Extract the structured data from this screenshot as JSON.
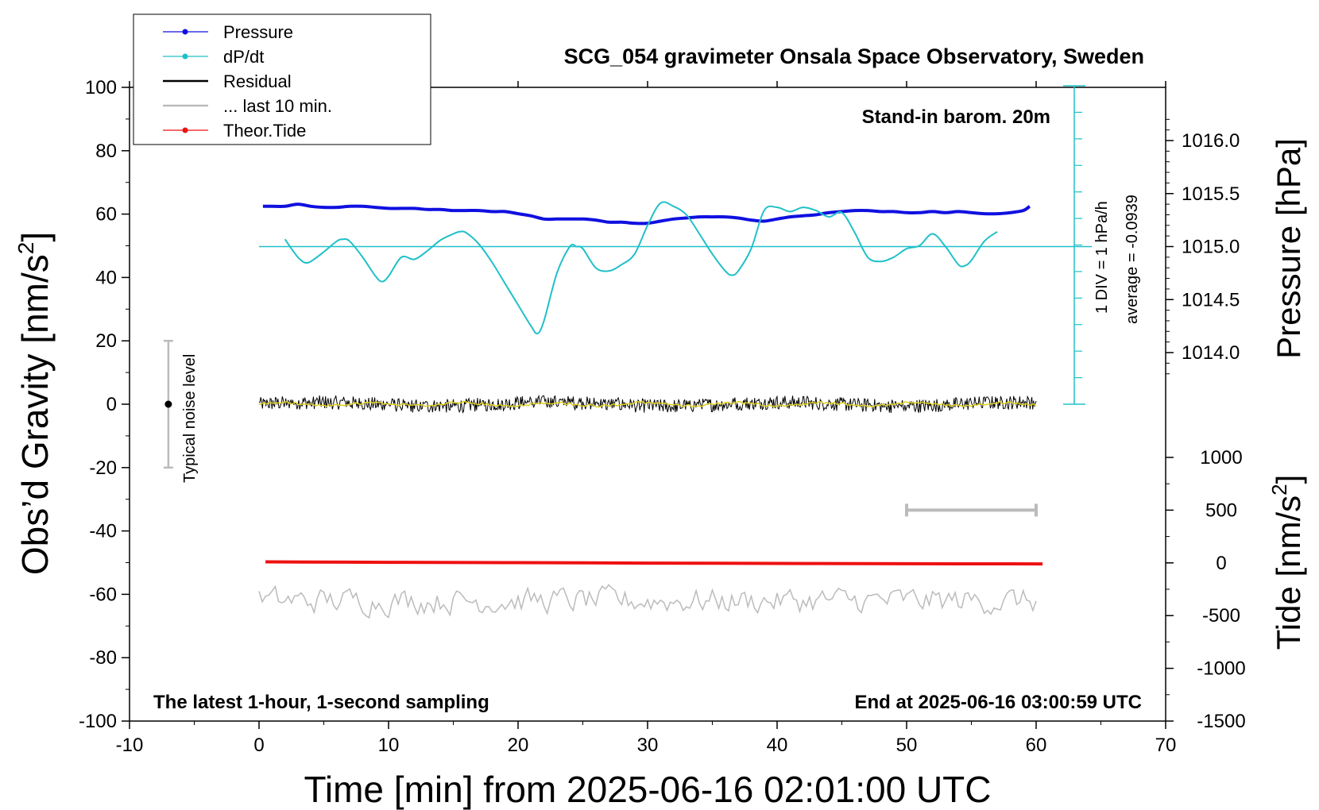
{
  "chart_data": {
    "type": "line",
    "title": "SCG_054 gravimeter Onsala Space Observatory, Sweden",
    "subtitle": "Stand-in barom. 20m",
    "xlabel": "Time [min] from 2025-06-16 02:01:00 UTC",
    "ylabel_left": "Obs’d Gravity [nm/s",
    "ylabel_right_top": "Pressure [hPa]",
    "ylabel_right_bottom": "Tide [nm/s",
    "superscript": "2",
    "xlim": [
      -10,
      70
    ],
    "ylim": [
      -100,
      100
    ],
    "x_ticks": [
      "-10",
      "0",
      "10",
      "20",
      "30",
      "40",
      "50",
      "60",
      "70"
    ],
    "y_ticks": [
      "100",
      "80",
      "60",
      "40",
      "20",
      "0",
      "-20",
      "-40",
      "-60",
      "-80",
      "-100"
    ],
    "pressure_ticks": [
      "1016.0",
      "1015.5",
      "1015.0",
      "1014.5",
      "1014.0"
    ],
    "tide_ticks": [
      "1000",
      "500",
      "0",
      "-500",
      "-1000",
      "-1500"
    ],
    "pressure_axis": {
      "value_at_top": 1016.0,
      "value_at_bottom": 1014.0
    },
    "tide_axis": {
      "min": -1500,
      "max": 1000
    },
    "annotations": {
      "div_label": "1 DIV = 1 hPa/h",
      "average_label": "average = -0.0939",
      "noise_label": "Typical noise level",
      "bottom_left": "The latest 1-hour, 1-second sampling",
      "bottom_right": "End at 2025-06-16 03:00:59 UTC"
    },
    "noise_bar": {
      "x": -7,
      "center": 0,
      "low": -20,
      "high": 20
    },
    "last10_bar": {
      "x_start": 50,
      "x_end": 60,
      "tide": 500
    },
    "dpdt_reference_level": 1015.0,
    "legend_position": "top-left",
    "legend": [
      {
        "label": "Pressure",
        "color": "#1010e0",
        "marker": true
      },
      {
        "label": "dP/dt",
        "color": "#20c0c8",
        "marker": true
      },
      {
        "label": "Residual",
        "color": "#000000",
        "marker": false
      },
      {
        "label": "... last 10 min.",
        "color": "#bbbbbb",
        "marker": false
      },
      {
        "label": "Theor.Tide",
        "color": "#ee1111",
        "marker": true
      }
    ],
    "series": [
      {
        "name": "Pressure",
        "axis": "pressure_hPa",
        "color": "#1010e0",
        "x": [
          0.3,
          1,
          2,
          3,
          4,
          5,
          6,
          7,
          8,
          9,
          10,
          11,
          12,
          13,
          14,
          15,
          16,
          17,
          18,
          19,
          20,
          21,
          22,
          23,
          24,
          25,
          26,
          27,
          28,
          29,
          30,
          31,
          32,
          33,
          34,
          35,
          36,
          37,
          38,
          39,
          40,
          41,
          42,
          43,
          44,
          45,
          46,
          47,
          48,
          49,
          50,
          51,
          52,
          53,
          54,
          55,
          56,
          57,
          58,
          59,
          59.5
        ],
        "y": [
          1015.38,
          1015.38,
          1015.38,
          1015.4,
          1015.38,
          1015.37,
          1015.37,
          1015.38,
          1015.38,
          1015.37,
          1015.36,
          1015.36,
          1015.36,
          1015.35,
          1015.35,
          1015.34,
          1015.34,
          1015.34,
          1015.33,
          1015.33,
          1015.31,
          1015.29,
          1015.26,
          1015.26,
          1015.26,
          1015.26,
          1015.25,
          1015.23,
          1015.23,
          1015.22,
          1015.22,
          1015.24,
          1015.26,
          1015.27,
          1015.28,
          1015.28,
          1015.28,
          1015.27,
          1015.25,
          1015.24,
          1015.26,
          1015.28,
          1015.29,
          1015.3,
          1015.32,
          1015.33,
          1015.34,
          1015.34,
          1015.33,
          1015.33,
          1015.32,
          1015.32,
          1015.33,
          1015.32,
          1015.33,
          1015.32,
          1015.31,
          1015.31,
          1015.32,
          1015.34,
          1015.38
        ]
      },
      {
        "name": "dP/dt",
        "axis": "pressure_hPa",
        "color": "#20c0c8",
        "x": [
          2,
          2.5,
          3,
          3.5,
          4,
          5,
          6,
          6.5,
          7,
          8,
          9,
          9.5,
          10,
          11,
          12,
          13,
          14,
          15,
          15.5,
          16,
          17,
          18,
          19,
          20,
          21,
          21.5,
          22,
          23,
          24,
          24.5,
          25,
          26,
          27,
          28,
          29,
          30,
          31,
          32,
          33,
          34,
          35,
          36,
          36.5,
          37,
          38,
          39,
          40,
          41,
          42,
          43,
          44,
          45,
          46,
          47,
          48,
          49,
          50,
          51,
          52,
          53,
          54,
          54.5,
          55,
          56,
          57
        ],
        "y": [
          1015.07,
          1014.98,
          1014.9,
          1014.85,
          1014.86,
          1014.95,
          1015.05,
          1015.07,
          1015.05,
          1014.9,
          1014.72,
          1014.67,
          1014.72,
          1014.9,
          1014.88,
          1014.96,
          1015.06,
          1015.12,
          1015.14,
          1015.13,
          1015.02,
          1014.85,
          1014.65,
          1014.45,
          1014.25,
          1014.18,
          1014.3,
          1014.75,
          1015.0,
          1015.0,
          1014.98,
          1014.8,
          1014.77,
          1014.83,
          1014.93,
          1015.2,
          1015.41,
          1015.38,
          1015.3,
          1015.12,
          1014.93,
          1014.77,
          1014.73,
          1014.77,
          1014.98,
          1015.34,
          1015.37,
          1015.33,
          1015.37,
          1015.34,
          1015.28,
          1015.32,
          1015.13,
          1014.9,
          1014.86,
          1014.9,
          1014.98,
          1015.01,
          1015.12,
          1015.0,
          1014.83,
          1014.82,
          1014.87,
          1015.05,
          1015.14
        ]
      },
      {
        "name": "Residual",
        "axis": "gravity_nm_s2",
        "color": "#000000",
        "smoothed_color": "#e0d020",
        "x": [
          0,
          60
        ],
        "mean": [
          0,
          0
        ],
        "noise_amplitude": 2.2
      },
      {
        "name": "... last 10 min.",
        "axis": "gravity_nm_s2",
        "color": "#bbbbbb",
        "x": [
          0,
          60
        ],
        "mean": [
          -62,
          -62
        ],
        "noise_amplitude": 3.5
      },
      {
        "name": "Theor.Tide",
        "axis": "tide_nm_s2",
        "color": "#ee1111",
        "x": [
          0.5,
          10,
          20,
          30,
          40,
          50,
          60.5
        ],
        "y": [
          10,
          5,
          2,
          -2,
          -5,
          -8,
          -10
        ]
      }
    ]
  }
}
